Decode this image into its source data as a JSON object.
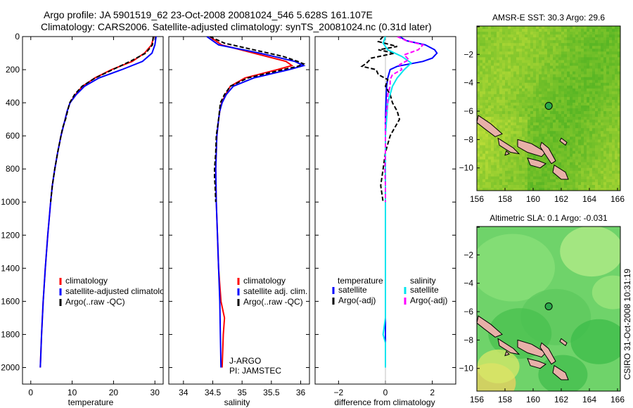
{
  "header": {
    "line1": "Argo profile: JA 5901519_62 23-Oct-2008 20081024_546 5.628S 161.107E",
    "line2": "Climatology: CARS2006. Satellite-adjusted climatology: synTS_20081024.nc (0.31d later)"
  },
  "footer": {
    "credit": "CSIRO 31-Oct-2008 10:31:19"
  },
  "colors": {
    "climatology": "#ff0000",
    "satellite": "#0000ff",
    "argo": "#000000",
    "cyan": "#00e5ee",
    "magenta": "#ff00ff",
    "land": "#e8b0a8"
  },
  "chart_data": [
    {
      "type": "line",
      "title": "",
      "xlabel": "temperature",
      "ylabel": "",
      "xlim": [
        -2,
        32
      ],
      "ylim": [
        0,
        2100
      ],
      "xticks": [
        0,
        10,
        20,
        30
      ],
      "yticks": [
        0,
        200,
        400,
        600,
        800,
        1000,
        1200,
        1400,
        1600,
        1800,
        2000
      ],
      "legend": [
        "climatology",
        "satellite-adjusted climatology",
        "Argo(..raw -QC)"
      ],
      "legend_position": "bottom-right",
      "series": [
        {
          "name": "climatology",
          "color": "#ff0000",
          "depth": [
            0,
            50,
            100,
            150,
            200,
            250,
            300,
            350,
            400,
            450,
            500,
            600,
            700,
            800,
            900,
            1000,
            1200,
            1400,
            1600,
            1800,
            2000
          ],
          "values": [
            29.7,
            29.2,
            27.5,
            24.5,
            19.5,
            15.5,
            12.5,
            10.8,
            9.5,
            8.8,
            8.3,
            7.3,
            6.5,
            5.8,
            5.2,
            4.8,
            4.1,
            3.5,
            3.0,
            2.6,
            2.3
          ]
        },
        {
          "name": "satellite-adjusted climatology",
          "color": "#0000ff",
          "depth": [
            0,
            50,
            100,
            150,
            200,
            250,
            300,
            350,
            400,
            450,
            500,
            600,
            700,
            800,
            900,
            1000,
            1200,
            1400,
            1600,
            1800,
            2000
          ],
          "values": [
            30.3,
            30.0,
            29.3,
            27.0,
            22.0,
            16.5,
            13.0,
            11.0,
            9.5,
            8.8,
            8.3,
            7.3,
            6.5,
            5.8,
            5.2,
            4.8,
            4.1,
            3.5,
            3.0,
            2.6,
            2.3
          ]
        },
        {
          "name": "Argo(..raw -QC)",
          "color": "#000000",
          "depth": [
            0,
            50,
            100,
            150,
            200,
            250,
            300,
            350,
            400,
            450,
            500,
            550,
            600,
            700,
            800,
            900,
            1000
          ],
          "values": [
            29.6,
            29.4,
            27.8,
            24.0,
            19.8,
            15.6,
            12.4,
            10.6,
            9.4,
            8.9,
            8.4,
            7.7,
            7.3,
            6.5,
            5.8,
            5.2,
            4.8
          ]
        }
      ]
    },
    {
      "type": "line",
      "title": "",
      "xlabel": "salinity",
      "ylabel": "",
      "xlim": [
        33.75,
        36.15
      ],
      "ylim": [
        0,
        2100
      ],
      "xticks": [
        34,
        34.5,
        35,
        35.5,
        36
      ],
      "legend": [
        "climatology",
        "satellite adj. clim.",
        "Argo(..raw -QC)"
      ],
      "legend_position": "bottom-right",
      "annotation": [
        "J-ARGO",
        "PI: JAMSTEC"
      ],
      "series": [
        {
          "name": "climatology",
          "color": "#ff0000",
          "depth": [
            0,
            50,
            100,
            150,
            175,
            200,
            250,
            300,
            350,
            400,
            450,
            500,
            600,
            700,
            800,
            1000,
            1200,
            1400,
            1600,
            1700,
            1800,
            2000
          ],
          "values": [
            34.45,
            34.65,
            35.2,
            35.75,
            35.85,
            35.6,
            35.05,
            34.8,
            34.72,
            34.65,
            34.62,
            34.6,
            34.57,
            34.56,
            34.55,
            34.56,
            34.58,
            34.6,
            34.64,
            34.7,
            34.68,
            34.66
          ]
        },
        {
          "name": "satellite adj. clim.",
          "color": "#0000ff",
          "depth": [
            0,
            50,
            100,
            150,
            175,
            200,
            250,
            300,
            350,
            400,
            450,
            500,
            600,
            700,
            800,
            1000,
            1200,
            1400,
            1600,
            1800,
            2000
          ],
          "values": [
            34.4,
            34.6,
            35.3,
            35.9,
            36.05,
            35.8,
            35.2,
            34.85,
            34.73,
            34.66,
            34.62,
            34.6,
            34.57,
            34.56,
            34.55,
            34.56,
            34.58,
            34.6,
            34.62,
            34.63,
            34.64
          ]
        },
        {
          "name": "Argo(..raw -QC)",
          "color": "#000000",
          "depth": [
            0,
            40,
            80,
            120,
            150,
            165,
            180,
            200,
            250,
            300,
            350,
            400,
            500,
            600,
            700,
            800,
            850,
            900,
            1000
          ],
          "values": [
            34.45,
            34.7,
            35.2,
            35.7,
            35.95,
            36.05,
            35.95,
            35.7,
            35.1,
            34.8,
            34.7,
            34.63,
            34.6,
            34.56,
            34.55,
            34.53,
            34.53,
            34.54,
            34.55
          ]
        }
      ]
    },
    {
      "type": "line",
      "title": "",
      "xlabel": "difference from climatology",
      "ylabel": "",
      "xlim": [
        -3,
        3
      ],
      "ylim": [
        0,
        2100
      ],
      "xticks": [
        -2,
        0,
        2
      ],
      "legend_headings": [
        "temperature",
        "salinity"
      ],
      "legend": [
        "satellite",
        "Argo(-adj)",
        "satellite",
        "Argo(-adj)"
      ],
      "legend_position": "bottom",
      "series": [
        {
          "name": "temperature satellite",
          "color": "#0000ff",
          "depth": [
            0,
            25,
            50,
            80,
            100,
            130,
            150,
            180,
            200,
            250,
            300,
            400,
            500,
            700,
            1000,
            1500,
            2000
          ],
          "values": [
            0.6,
            0.9,
            1.7,
            2.1,
            2.2,
            2.0,
            1.6,
            0.5,
            0.2,
            0.1,
            0.05,
            0.02,
            0,
            0,
            0,
            0,
            0
          ]
        },
        {
          "name": "temperature Argo(-adj)",
          "color": "#000000",
          "depth": [
            0,
            30,
            60,
            80,
            100,
            130,
            160,
            180,
            200,
            230,
            260,
            300,
            350,
            400,
            450,
            500,
            550,
            600,
            650,
            700,
            800,
            900,
            1000
          ],
          "values": [
            -0.1,
            -0.3,
            0.5,
            -0.3,
            0.4,
            -0.6,
            -0.8,
            -1.0,
            -0.4,
            -0.3,
            0.1,
            0.0,
            0.2,
            0.3,
            0.5,
            0.6,
            0.4,
            0.2,
            0.1,
            0.0,
            -0.1,
            -0.2,
            -0.1
          ]
        },
        {
          "name": "salinity satellite",
          "color": "#00e5ee",
          "depth": [
            0,
            40,
            80,
            120,
            160,
            200,
            250,
            300,
            400,
            500,
            600,
            800,
            1000,
            1200,
            1400,
            1600,
            1700,
            1800,
            1850,
            1900,
            2000
          ],
          "values": [
            0.0,
            -0.1,
            0.1,
            0.7,
            1.1,
            0.8,
            0.5,
            0.3,
            0.1,
            0.05,
            0,
            0,
            0,
            0,
            0,
            0,
            0,
            -0.1,
            0.0,
            0.0,
            0.0
          ]
        },
        {
          "name": "salinity Argo(-adj)",
          "color": "#ff00ff",
          "depth": [
            0,
            25,
            50,
            80,
            110,
            140,
            170,
            200,
            230,
            260,
            300,
            350,
            400,
            450,
            500,
            600,
            700,
            800,
            900,
            1000
          ],
          "values": [
            0.5,
            0.9,
            1.6,
            1.4,
            0.8,
            1.0,
            0.6,
            0.7,
            0.3,
            0.2,
            0.2,
            0.1,
            0.1,
            0.05,
            0.0,
            0.0,
            0.0,
            -0.02,
            0.0,
            0.0
          ]
        }
      ]
    },
    {
      "type": "heatmap",
      "title": "AMSR-E SST: 30.3 Argo: 29.6",
      "xlim": [
        156,
        166.2
      ],
      "ylim": [
        -11.6,
        0
      ],
      "xticks": [
        156,
        158,
        160,
        162,
        164,
        166
      ],
      "yticks": [
        -2,
        -4,
        -6,
        -8,
        -10
      ],
      "marker": {
        "lon": 161.107,
        "lat": -5.628
      }
    },
    {
      "type": "heatmap",
      "title": "Altimetric SLA: 0.1 Argo: -0.031",
      "xlim": [
        156,
        166.2
      ],
      "ylim": [
        -11.6,
        0
      ],
      "xticks": [
        156,
        158,
        160,
        162,
        164,
        166
      ],
      "yticks": [
        -2,
        -4,
        -6,
        -8,
        -10
      ],
      "marker": {
        "lon": 161.107,
        "lat": -5.628
      }
    }
  ]
}
